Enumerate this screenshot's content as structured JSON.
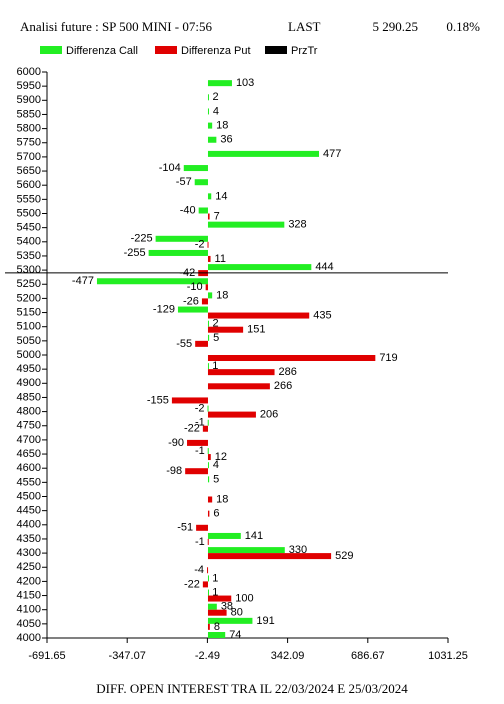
{
  "chart_data": {
    "type": "hbar",
    "title": "Analisi future : SP 500 MINI - 07:56",
    "last_label": "LAST",
    "last": {
      "value": 5290.25,
      "label": "5 290.25"
    },
    "change": "0.18%",
    "footer": "DIFF. OPEN INTEREST TRA IL 22/03/2024 E 25/03/2024",
    "categories": [
      6000,
      5950,
      5900,
      5850,
      5800,
      5750,
      5700,
      5650,
      5600,
      5550,
      5500,
      5450,
      5400,
      5350,
      5300,
      5250,
      5200,
      5150,
      5100,
      5050,
      5000,
      4950,
      4900,
      4850,
      4800,
      4750,
      4700,
      4650,
      4600,
      4550,
      4500,
      4450,
      4400,
      4350,
      4300,
      4250,
      4200,
      4150,
      4100,
      4050,
      4000
    ],
    "series": [
      {
        "name": "Differenza Call",
        "color": "#22ee22",
        "values": [
          null,
          103,
          2,
          4,
          18,
          36,
          477,
          -104,
          -57,
          14,
          -40,
          328,
          -225,
          -255,
          444,
          -477,
          18,
          -129,
          2,
          5,
          null,
          1,
          null,
          null,
          -2,
          -1,
          null,
          -1,
          4,
          5,
          null,
          null,
          null,
          141,
          330,
          null,
          1,
          1,
          38,
          191,
          74
        ]
      },
      {
        "name": "Differenza Put",
        "color": "#e00000",
        "values": [
          null,
          null,
          null,
          null,
          null,
          null,
          null,
          null,
          null,
          null,
          7,
          null,
          -2,
          11,
          -42,
          -10,
          -26,
          435,
          151,
          -55,
          719,
          286,
          266,
          -155,
          206,
          -22,
          -90,
          12,
          -98,
          null,
          18,
          6,
          -51,
          -1,
          529,
          -4,
          -22,
          100,
          80,
          8,
          null
        ]
      }
    ],
    "ref_line": {
      "name": "PrzTr",
      "color": "#000000"
    },
    "xlim": [
      -691.65,
      1031.25
    ],
    "xticks": [
      -691.65,
      -347.07,
      -2.49,
      342.09,
      686.67,
      1031.25
    ]
  }
}
